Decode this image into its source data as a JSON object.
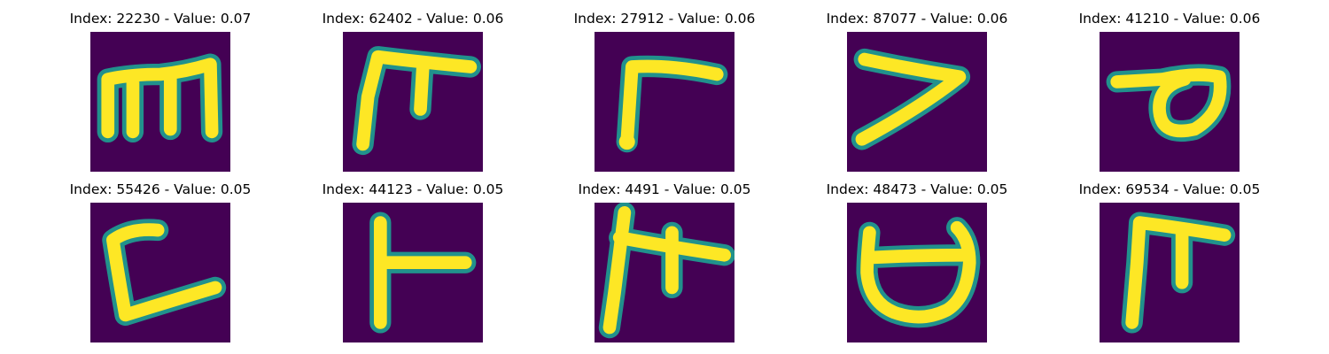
{
  "colors": {
    "background": "#440154",
    "stroke_edge": "#21918c",
    "stroke_core": "#fde725"
  },
  "panels": [
    {
      "title": "Index: 22230 - Value: 0.07",
      "glyph": "m-shape-icon"
    },
    {
      "title": "Index: 62402 - Value: 0.06",
      "glyph": "pi-shape-icon"
    },
    {
      "title": "Index: 27912 - Value: 0.06",
      "glyph": "gamma-shape-icon"
    },
    {
      "title": "Index: 87077 - Value: 0.06",
      "glyph": "seven-shape-icon"
    },
    {
      "title": "Index: 41210 - Value: 0.06",
      "glyph": "loop-shape-icon"
    },
    {
      "title": "Index: 55426 - Value: 0.05",
      "glyph": "bracket-shape-icon"
    },
    {
      "title": "Index: 44123 - Value: 0.05",
      "glyph": "tee-shape-icon"
    },
    {
      "title": "Index: 4491 - Value: 0.05",
      "glyph": "crossed-shape-icon"
    },
    {
      "title": "Index: 48473 - Value: 0.05",
      "glyph": "cup-shape-icon"
    },
    {
      "title": "Index: 69534 - Value: 0.05",
      "glyph": "pi-shape-icon"
    }
  ]
}
